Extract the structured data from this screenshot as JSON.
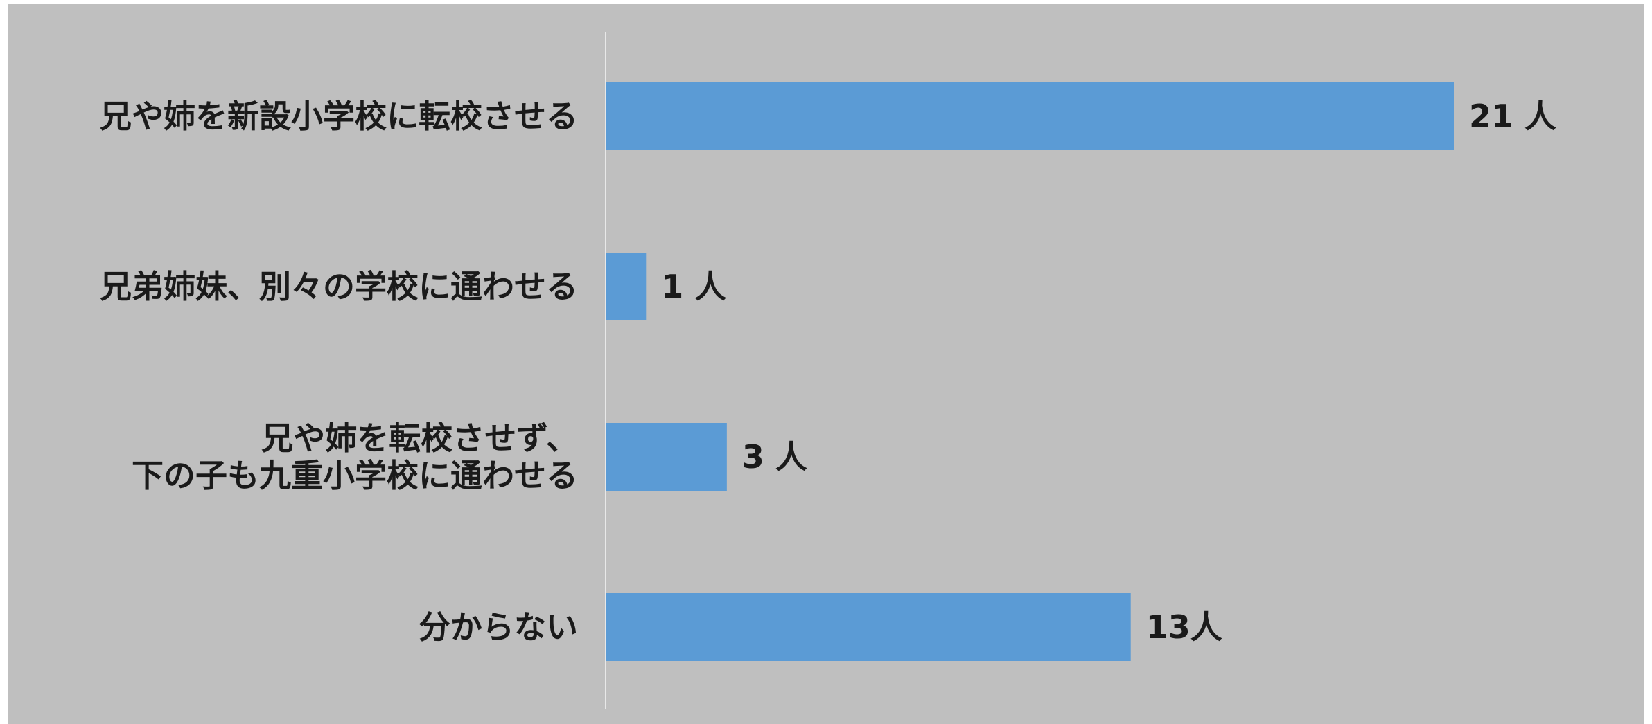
{
  "colors": {
    "background": "#bfbfbf",
    "bar": "#5b9bd5",
    "axis_line": "#e8e8e8",
    "text": "#1a1a1a"
  },
  "chart_data": {
    "type": "bar",
    "orientation": "horizontal",
    "categories": [
      [
        "兄や姉を新設小学校に転校させる"
      ],
      [
        "兄弟姉妹、別々の学校に通わせる"
      ],
      [
        "兄や姉を転校させず、",
        "下の子も九重小学校に通わせる"
      ],
      [
        "分からない"
      ]
    ],
    "values": [
      21,
      1,
      3,
      13
    ],
    "value_labels": [
      "21 人",
      "1 人",
      "3 人",
      "13人"
    ],
    "xlim": [
      0,
      21
    ],
    "grid": false,
    "legend": "none"
  }
}
